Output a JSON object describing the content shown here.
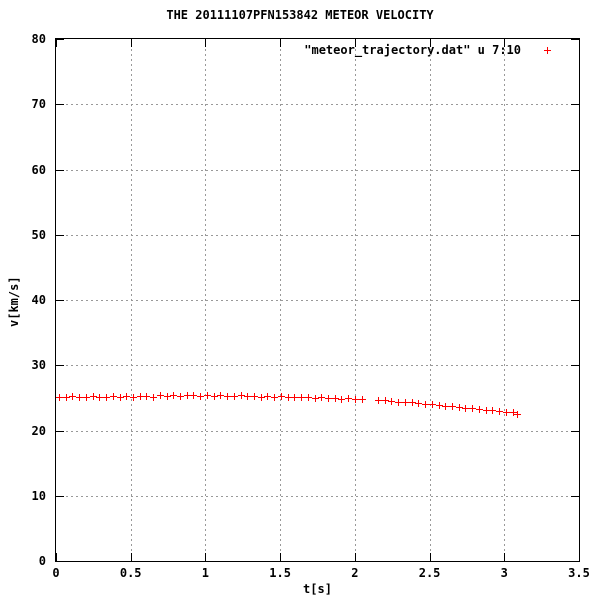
{
  "chart_data": {
    "type": "scatter",
    "title": "THE 20111107PFN153842 METEOR VELOCITY",
    "xlabel": "t[s]",
    "ylabel": "v[km/s]",
    "xlim": [
      0,
      3.5
    ],
    "ylim": [
      0,
      80
    ],
    "xticks": [
      0,
      0.5,
      1,
      1.5,
      2,
      2.5,
      3,
      3.5
    ],
    "xtick_labels": [
      "0",
      "0.5",
      "1",
      "1.5",
      "2",
      "2.5",
      "3",
      "3.5"
    ],
    "yticks": [
      0,
      10,
      20,
      30,
      40,
      50,
      60,
      70,
      80
    ],
    "ytick_labels": [
      "0",
      "10",
      "20",
      "30",
      "40",
      "50",
      "60",
      "70",
      "80"
    ],
    "grid": true,
    "grid_color": "#999999",
    "axis_color": "#000000",
    "background_color": "#ffffff",
    "legend": {
      "label": "\"meteor_trajectory.dat\" u 7:10",
      "position": "top-right",
      "marker": "plus-icon",
      "marker_color": "#ff0000"
    },
    "series": [
      {
        "name": "\"meteor_trajectory.dat\" u 7:10",
        "marker": "plus",
        "color": "#ff0000",
        "x": [
          0.02,
          0.065,
          0.11,
          0.155,
          0.2,
          0.245,
          0.29,
          0.335,
          0.38,
          0.425,
          0.47,
          0.515,
          0.56,
          0.605,
          0.65,
          0.695,
          0.74,
          0.785,
          0.83,
          0.875,
          0.92,
          0.965,
          1.01,
          1.055,
          1.1,
          1.145,
          1.19,
          1.235,
          1.28,
          1.325,
          1.37,
          1.415,
          1.46,
          1.505,
          1.55,
          1.595,
          1.64,
          1.685,
          1.73,
          1.775,
          1.82,
          1.865,
          1.91,
          1.955,
          2.0,
          2.045,
          2.155,
          2.2,
          2.245,
          2.29,
          2.335,
          2.38,
          2.425,
          2.47,
          2.515,
          2.56,
          2.605,
          2.65,
          2.695,
          2.74,
          2.785,
          2.83,
          2.875,
          2.92,
          2.965,
          3.01,
          3.055,
          3.085
        ],
        "y": [
          25.2,
          25.2,
          25.3,
          25.2,
          25.2,
          25.3,
          25.2,
          25.2,
          25.3,
          25.2,
          25.3,
          25.2,
          25.3,
          25.3,
          25.2,
          25.4,
          25.3,
          25.4,
          25.3,
          25.4,
          25.4,
          25.3,
          25.4,
          25.3,
          25.4,
          25.3,
          25.3,
          25.4,
          25.3,
          25.3,
          25.2,
          25.3,
          25.2,
          25.3,
          25.1,
          25.2,
          25.1,
          25.1,
          25.0,
          25.1,
          25.0,
          25.0,
          24.9,
          25.0,
          24.9,
          24.8,
          24.7,
          24.6,
          24.5,
          24.4,
          24.4,
          24.3,
          24.2,
          24.1,
          24.0,
          23.9,
          23.8,
          23.7,
          23.6,
          23.5,
          23.4,
          23.3,
          23.2,
          23.1,
          23.0,
          22.9,
          22.8,
          22.6
        ]
      }
    ]
  }
}
